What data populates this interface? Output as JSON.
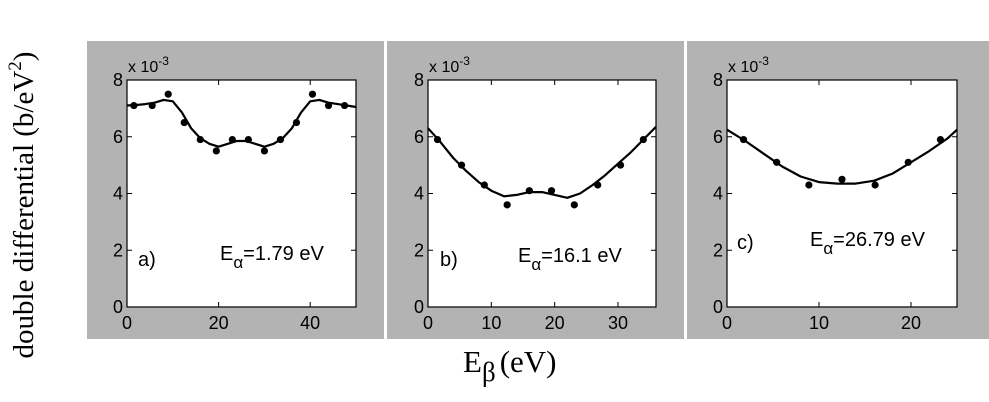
{
  "y_label_main": "double differential (b/eV",
  "y_label_exp": "2",
  "y_label_close": ")",
  "x_label_main": "E",
  "x_label_sub": "β",
  "x_label_unit": "(eV)",
  "multiplier_base": "x 10",
  "multiplier_exp": "-3",
  "chart_data": [
    {
      "type": "scatter",
      "panel_label": "a)",
      "energy_symbol": "E",
      "energy_sub": "α",
      "energy_value": "=1.79 eV",
      "xlim": [
        0,
        50
      ],
      "ylim": [
        0,
        8
      ],
      "x_ticks": [
        0,
        20,
        40
      ],
      "y_ticks": [
        0,
        2,
        4,
        6,
        8
      ],
      "points": {
        "x": [
          1.5,
          5.5,
          9,
          12.5,
          16,
          19.5,
          23,
          26.5,
          30,
          33.5,
          37,
          40.5,
          44,
          47.5
        ],
        "y": [
          7.1,
          7.1,
          7.5,
          6.5,
          5.9,
          5.5,
          5.9,
          5.9,
          5.5,
          5.9,
          6.5,
          7.5,
          7.1,
          7.1
        ]
      },
      "curve": {
        "x": [
          0,
          2,
          4,
          6,
          8,
          10,
          12,
          14,
          16,
          18,
          20,
          22,
          24,
          26,
          28,
          30,
          32,
          34,
          36,
          38,
          40,
          42,
          44,
          46,
          48,
          50
        ],
        "y": [
          7.1,
          7.12,
          7.15,
          7.2,
          7.3,
          7.25,
          6.85,
          6.3,
          5.95,
          5.75,
          5.65,
          5.75,
          5.85,
          5.85,
          5.75,
          5.65,
          5.75,
          5.95,
          6.3,
          6.85,
          7.25,
          7.3,
          7.2,
          7.15,
          7.1,
          7.05
        ]
      }
    },
    {
      "type": "scatter",
      "panel_label": "b)",
      "energy_symbol": "E",
      "energy_sub": "α",
      "energy_value": "=16.1 eV",
      "xlim": [
        0,
        36
      ],
      "ylim": [
        0,
        8
      ],
      "x_ticks": [
        0,
        10,
        20,
        30
      ],
      "y_ticks": [
        0,
        2,
        4,
        6,
        8
      ],
      "points": {
        "x": [
          1.5,
          5.3,
          8.9,
          12.5,
          16,
          19.5,
          23.1,
          26.8,
          30.4,
          34
        ],
        "y": [
          5.9,
          5.0,
          4.3,
          3.6,
          4.1,
          4.1,
          3.6,
          4.3,
          5.0,
          5.9
        ]
      },
      "curve": {
        "x": [
          0,
          2,
          4,
          6,
          8,
          10,
          12,
          14,
          16,
          18,
          20,
          22,
          24,
          26,
          28,
          30,
          32,
          34,
          36
        ],
        "y": [
          6.3,
          5.8,
          5.25,
          4.8,
          4.4,
          4.1,
          3.9,
          3.95,
          4.05,
          4.05,
          3.95,
          3.85,
          4.0,
          4.3,
          4.65,
          5.05,
          5.45,
          5.9,
          6.35
        ]
      }
    },
    {
      "type": "scatter",
      "panel_label": "c)",
      "energy_symbol": "E",
      "energy_sub": "α",
      "energy_value": "=26.79 eV",
      "xlim": [
        0,
        25
      ],
      "ylim": [
        0,
        8
      ],
      "x_ticks": [
        0,
        10,
        20
      ],
      "y_ticks": [
        0,
        2,
        4,
        6,
        8
      ],
      "points": {
        "x": [
          1.8,
          5.4,
          8.9,
          12.5,
          16.1,
          19.7,
          23.2
        ],
        "y": [
          5.9,
          5.1,
          4.3,
          4.5,
          4.3,
          5.1,
          5.9
        ]
      },
      "curve": {
        "x": [
          0,
          2,
          4,
          6,
          8,
          10,
          12,
          14,
          16,
          18,
          20,
          22,
          24,
          25
        ],
        "y": [
          6.25,
          5.85,
          5.4,
          4.95,
          4.6,
          4.4,
          4.35,
          4.35,
          4.45,
          4.7,
          5.1,
          5.5,
          5.95,
          6.25
        ]
      }
    }
  ]
}
